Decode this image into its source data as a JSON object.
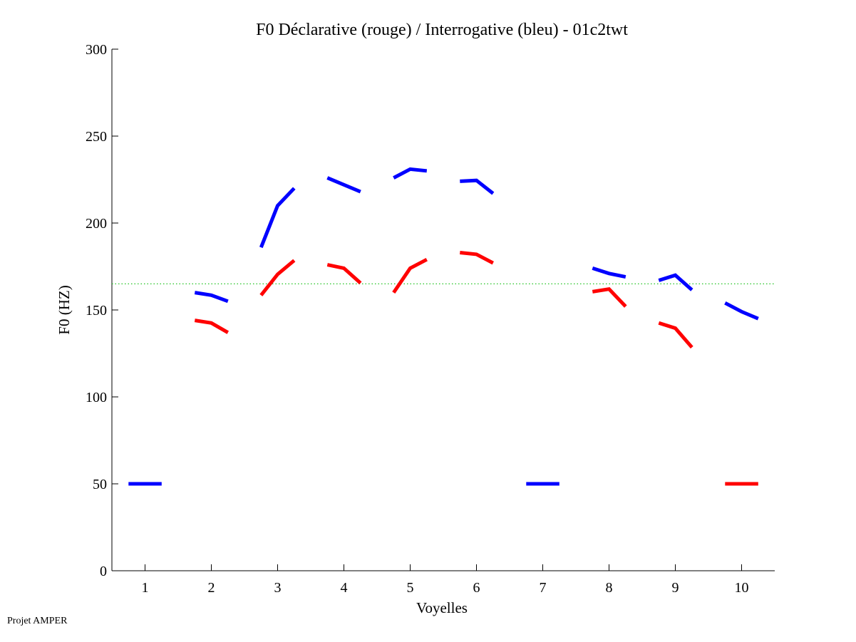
{
  "chart_data": {
    "type": "line",
    "title": "F0 Déclarative (rouge) / Interrogative (bleu) - 01c2twt",
    "xlabel": "Voyelles",
    "ylabel": "F0 (HZ)",
    "xlim": [
      0.5,
      10.5
    ],
    "ylim": [
      0,
      300
    ],
    "xticks": [
      1,
      2,
      3,
      4,
      5,
      6,
      7,
      8,
      9,
      10
    ],
    "yticks": [
      0,
      50,
      100,
      150,
      200,
      250,
      300
    ],
    "grid": false,
    "reference_line": {
      "value": 165,
      "color": "#22c322",
      "style": "dotted"
    },
    "series": [
      {
        "name": "Interrogative (bleu)",
        "color": "#0000ff",
        "segments": [
          [
            50,
            50,
            50
          ],
          [
            160,
            158.5,
            155
          ],
          [
            186,
            210,
            220
          ],
          [
            226,
            222,
            218
          ],
          [
            226,
            231,
            230
          ],
          [
            224,
            224.5,
            217
          ],
          [
            50,
            50,
            50
          ],
          [
            174,
            171,
            169
          ],
          [
            167,
            170,
            161.5
          ],
          [
            154,
            149,
            145
          ]
        ]
      },
      {
        "name": "Déclarative (rouge)",
        "color": "#ff0000",
        "segments": [
          null,
          [
            144,
            142.5,
            137
          ],
          [
            158.5,
            170.5,
            178.5
          ],
          [
            176,
            174,
            165.5
          ],
          [
            160,
            174,
            179
          ],
          [
            183,
            182,
            177
          ],
          null,
          [
            160.5,
            162,
            152
          ],
          [
            142.5,
            139.5,
            128.5
          ],
          [
            50,
            50,
            50
          ]
        ]
      }
    ]
  },
  "footer": "Projet AMPER"
}
